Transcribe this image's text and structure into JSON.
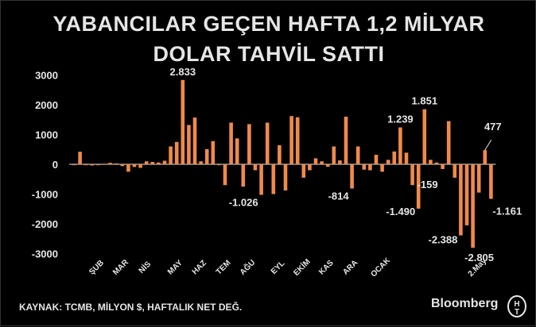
{
  "header": {
    "title_line1": "YABANCILAR GEÇEN HAFTA 1,2 MİLYAR",
    "title_line2": "DOLAR TAHVİL SATTI"
  },
  "footer": {
    "source": "KAYNAK: TCMB, MİLYON $, HAFTALIK NET DEĞ.",
    "brand": "Bloomberg"
  },
  "colors": {
    "background": "#000000",
    "bar": "#f08a4b",
    "text": "#e6e6e6"
  },
  "chart_data": {
    "type": "bar",
    "title": "YABANCILAR GEÇEN HAFTA 1,2 MİLYAR DOLAR TAHVİL SATTI",
    "ylim": [
      -3000,
      3000
    ],
    "yticks": [
      3000,
      2000,
      1000,
      0,
      -1000,
      -2000,
      -3000
    ],
    "ytick_labels": [
      "3000",
      "2000",
      "1000",
      "0",
      "-1000",
      "-2000",
      "-3000"
    ],
    "grid": false,
    "month_labels": [
      {
        "label": "ŞUB",
        "week": 4
      },
      {
        "label": "MAR",
        "week": 8
      },
      {
        "label": "NİS",
        "week": 12
      },
      {
        "label": "MAY",
        "week": 17
      },
      {
        "label": "HAZ",
        "week": 21
      },
      {
        "label": "TEM",
        "week": 25
      },
      {
        "label": "AĞU",
        "week": 29
      },
      {
        "label": "EYL",
        "week": 34
      },
      {
        "label": "EKİM",
        "week": 38
      },
      {
        "label": "KAS",
        "week": 42
      },
      {
        "label": "ARA",
        "week": 46
      },
      {
        "label": "OCAK",
        "week": 51
      },
      {
        "label": "2.May",
        "week": 67
      }
    ],
    "values": [
      -30,
      420,
      -30,
      -40,
      -30,
      20,
      50,
      30,
      -60,
      -250,
      -90,
      -120,
      100,
      80,
      60,
      120,
      600,
      750,
      2833,
      1320,
      1570,
      100,
      510,
      780,
      -30,
      -700,
      1400,
      870,
      -750,
      1350,
      -200,
      -1026,
      1400,
      -1000,
      640,
      -880,
      1620,
      1580,
      -450,
      -200,
      200,
      100,
      -80,
      600,
      130,
      1600,
      -814,
      600,
      -180,
      -200,
      320,
      -250,
      150,
      430,
      1239,
      390,
      -700,
      -1490,
      1851,
      150,
      60,
      -159,
      1450,
      -450,
      -2388,
      -2050,
      -2805,
      -950,
      477,
      -1161
    ],
    "data_labels": [
      {
        "index": 18,
        "text": "2.833"
      },
      {
        "index": 31,
        "text": "-1.026"
      },
      {
        "index": 46,
        "text": "-814"
      },
      {
        "index": 54,
        "text": "1.239"
      },
      {
        "index": 57,
        "text": "-1.490"
      },
      {
        "index": 58,
        "text": "1.851"
      },
      {
        "index": 61,
        "text": "-159"
      },
      {
        "index": 64,
        "text": "-2.388"
      },
      {
        "index": 66,
        "text": "-2.805"
      },
      {
        "index": 68,
        "text": "477"
      },
      {
        "index": 69,
        "text": "-1.161"
      }
    ]
  }
}
